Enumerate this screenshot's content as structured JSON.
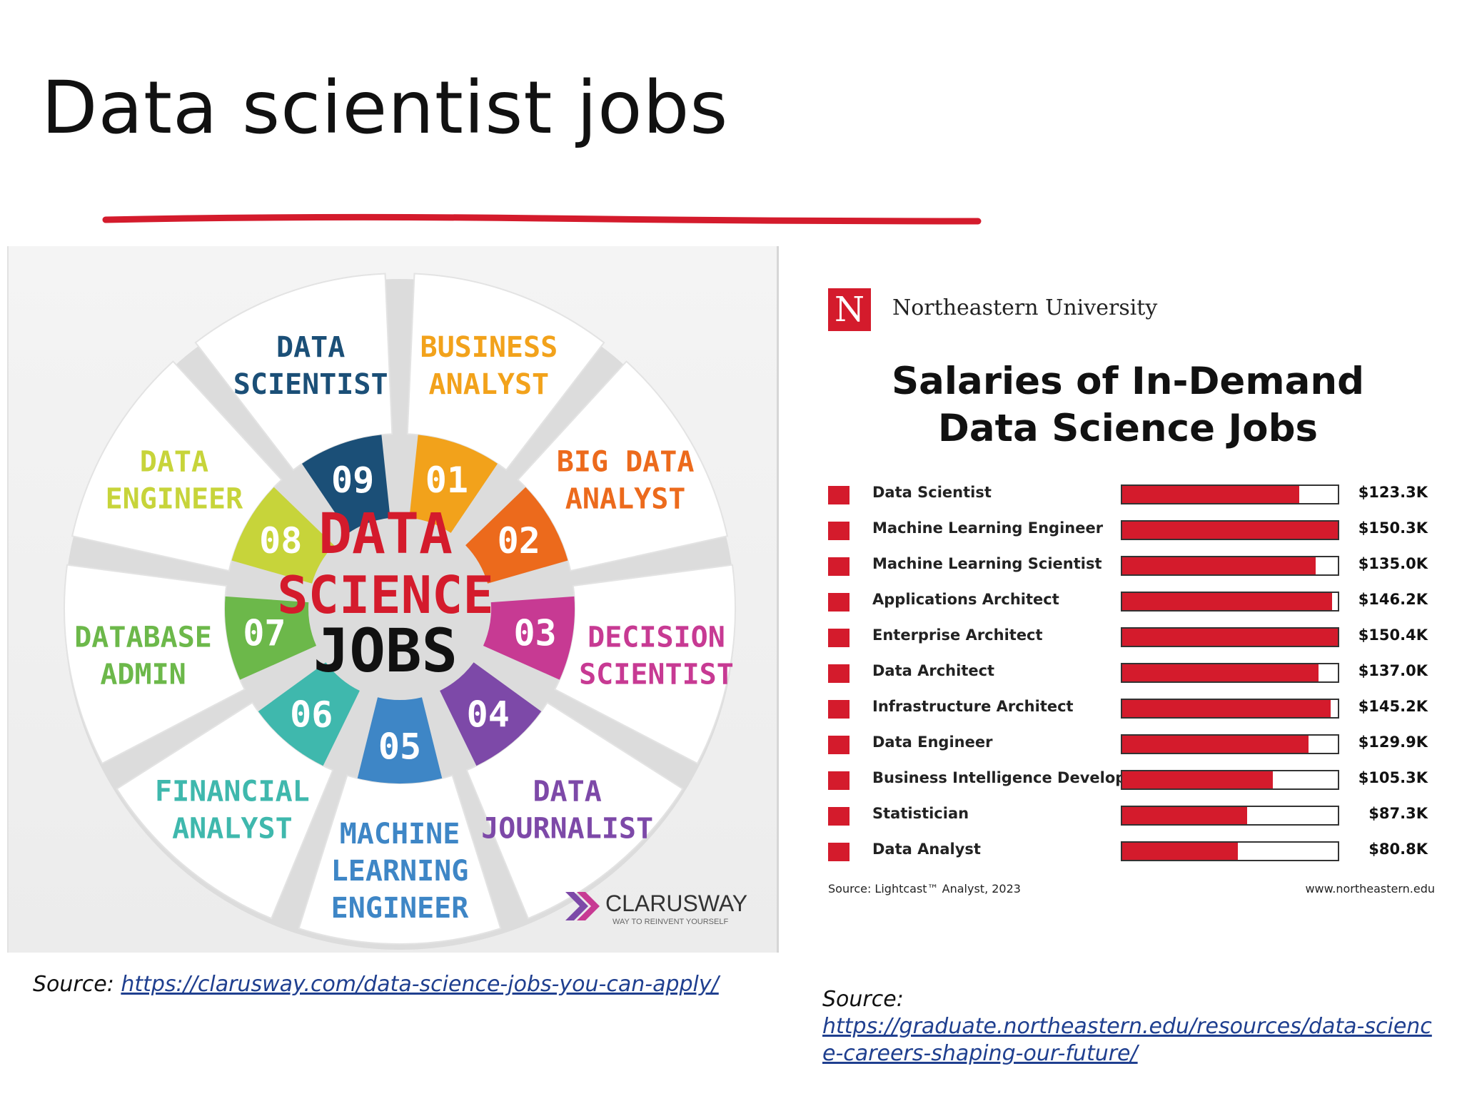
{
  "slide": {
    "title": "Data scientist jobs",
    "accent_color": "#d41b2c"
  },
  "wheel": {
    "center": [
      "DATA",
      "SCIENCE",
      "JOBS"
    ],
    "center_colors": [
      "#d41b2c",
      "#d41b2c",
      "#111111"
    ],
    "segments": [
      {
        "num": "01",
        "label": [
          "BUSINESS",
          "ANALYST"
        ],
        "color": "#f2a21b"
      },
      {
        "num": "02",
        "label": [
          "BIG DATA",
          "ANALYST"
        ],
        "color": "#ec6a1c"
      },
      {
        "num": "03",
        "label": [
          "DECISION",
          "SCIENTIST"
        ],
        "color": "#c73a93"
      },
      {
        "num": "04",
        "label": [
          "DATA",
          "JOURNALIST"
        ],
        "color": "#7d49a8"
      },
      {
        "num": "05",
        "label": [
          "MACHINE",
          "LEARNING",
          "ENGINEER"
        ],
        "color": "#3e86c6"
      },
      {
        "num": "06",
        "label": [
          "FINANCIAL",
          "ANALYST"
        ],
        "color": "#3fb8ad"
      },
      {
        "num": "07",
        "label": [
          "DATABASE",
          "ADMIN"
        ],
        "color": "#6cb84a"
      },
      {
        "num": "08",
        "label": [
          "DATA",
          "ENGINEER"
        ],
        "color": "#c7d43a"
      },
      {
        "num": "09",
        "label": [
          "DATA",
          "SCIENTIST"
        ],
        "color": "#1b4f77"
      }
    ],
    "brand": "CLARUSWAY",
    "brand_tagline": "WAY TO REINVENT YOURSELF"
  },
  "salaries": {
    "logo_letter": "N",
    "university": "Northeastern University",
    "title_line1": "Salaries of In-Demand",
    "title_line2": "Data Science Jobs",
    "source": "Source: Lightcast™ Analyst, 2023",
    "url": "www.northeastern.edu",
    "chart_data": {
      "type": "bar",
      "categories": [
        "Data Scientist",
        "Machine Learning Engineer",
        "Machine Learning Scientist",
        "Applications Architect",
        "Enterprise Architect",
        "Data Architect",
        "Infrastructure Architect",
        "Data Engineer",
        "Business Intelligence Developer",
        "Statistician",
        "Data Analyst"
      ],
      "labels": [
        "$123.3K",
        "$150.3K",
        "$135.0K",
        "$146.2K",
        "$150.4K",
        "$137.0K",
        "$145.2K",
        "$129.9K",
        "$105.3K",
        "$87.3K",
        "$80.8K"
      ],
      "values": [
        123.3,
        150.3,
        135.0,
        146.2,
        150.4,
        137.0,
        145.2,
        129.9,
        105.3,
        87.3,
        80.8
      ],
      "xlim": [
        0,
        150.4
      ]
    }
  },
  "sources": {
    "left_prefix": "Source: ",
    "left_link": "https://clarusway.com/data-science-jobs-you-can-apply/",
    "right_prefix": "Source:",
    "right_link": "https://graduate.northeastern.edu/resources/data-science-careers-shaping-our-future/"
  }
}
